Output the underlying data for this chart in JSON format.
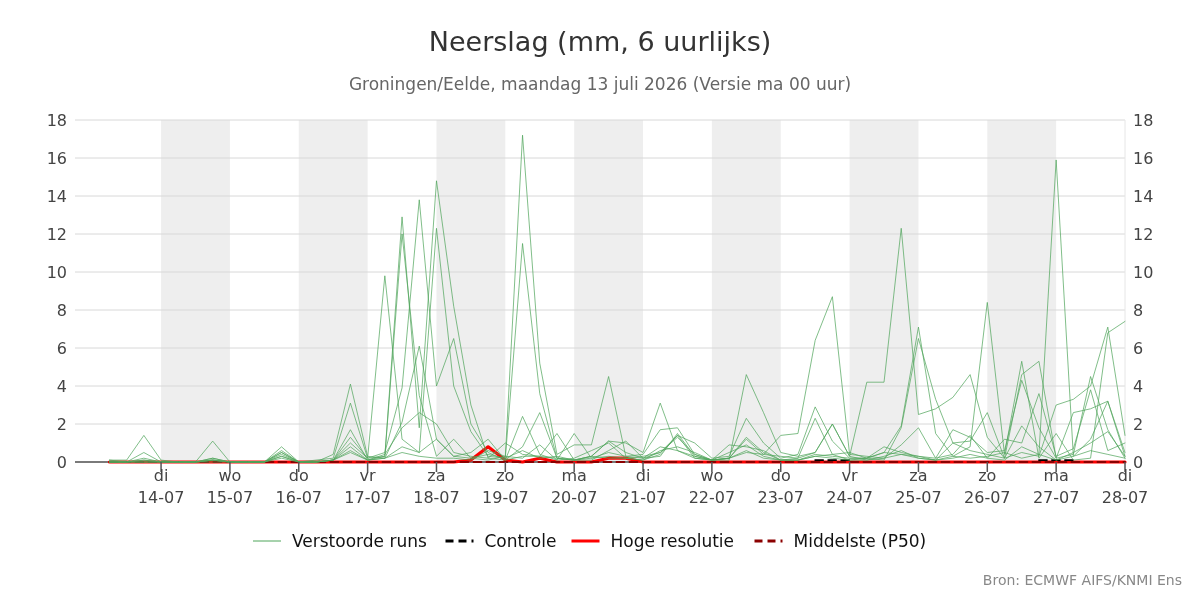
{
  "chart_data": {
    "type": "line",
    "title": "Neerslag (mm, 6 uurlijks)",
    "subtitle": "Groningen/Eelde, maandag 13 juli 2026 (Versie ma 00 uur)",
    "annotations": [
      "Bron: ECMWF AIFS/KNMI Ens"
    ],
    "x": [
      "2026-07-13T06:00",
      "2026-07-13T12:00",
      "2026-07-13T18:00",
      "2026-07-14T00:00",
      "2026-07-14T06:00",
      "2026-07-14T12:00",
      "2026-07-14T18:00",
      "2026-07-15T00:00",
      "2026-07-15T06:00",
      "2026-07-15T12:00",
      "2026-07-15T18:00",
      "2026-07-16T00:00",
      "2026-07-16T06:00",
      "2026-07-16T12:00",
      "2026-07-16T18:00",
      "2026-07-17T00:00",
      "2026-07-17T06:00",
      "2026-07-17T12:00",
      "2026-07-17T18:00",
      "2026-07-18T00:00",
      "2026-07-18T06:00",
      "2026-07-18T12:00",
      "2026-07-18T18:00",
      "2026-07-19T00:00",
      "2026-07-19T06:00",
      "2026-07-19T12:00",
      "2026-07-19T18:00",
      "2026-07-20T00:00",
      "2026-07-20T06:00",
      "2026-07-20T12:00",
      "2026-07-20T18:00",
      "2026-07-21T00:00",
      "2026-07-21T06:00",
      "2026-07-21T12:00",
      "2026-07-21T18:00",
      "2026-07-22T00:00",
      "2026-07-22T06:00",
      "2026-07-22T12:00",
      "2026-07-22T18:00",
      "2026-07-23T00:00",
      "2026-07-23T06:00",
      "2026-07-23T12:00",
      "2026-07-23T18:00",
      "2026-07-24T00:00",
      "2026-07-24T06:00",
      "2026-07-24T12:00",
      "2026-07-24T18:00",
      "2026-07-25T00:00",
      "2026-07-25T06:00",
      "2026-07-25T12:00",
      "2026-07-25T18:00",
      "2026-07-26T00:00",
      "2026-07-26T06:00",
      "2026-07-26T12:00",
      "2026-07-26T18:00",
      "2026-07-27T00:00",
      "2026-07-27T06:00",
      "2026-07-27T12:00",
      "2026-07-27T18:00",
      "2026-07-28T00:00"
    ],
    "series": [
      {
        "name": "Verstoorde runs",
        "color": "#4fa55a",
        "values": [
          0.1,
          0.1,
          1.4,
          0.1,
          0,
          0,
          0.1,
          0,
          0,
          0,
          0.3,
          0,
          0,
          0.4,
          4.1,
          0.3,
          0.2,
          0.5,
          0.3,
          0.2,
          0.2,
          0.1,
          0.6,
          0.3,
          17.2,
          5.2,
          0.4,
          0.9,
          0.9,
          4.5,
          0.3,
          0.4,
          1.7,
          1.8,
          0.4,
          0.1,
          0.2,
          0.5,
          0.4,
          1.4,
          1.5,
          6.4,
          8.7,
          0.4,
          0.3,
          0.2,
          0.4,
          0.2,
          0.1,
          0.3,
          0.2,
          0.3,
          0.5,
          0.2,
          0.4,
          15.9,
          0.3,
          0.6,
          0.4,
          0.2
        ]
      },
      {
        "color": "#4fa55a",
        "values": [
          0.1,
          0,
          0.5,
          0,
          0,
          0,
          1.1,
          0,
          0,
          0,
          0.8,
          0,
          0.1,
          0.2,
          3.1,
          0.2,
          9.8,
          1.2,
          0.5,
          12.3,
          4.0,
          1.6,
          0.3,
          0.2,
          11.5,
          3.6,
          0.2,
          0.1,
          0.3,
          1.1,
          1.0,
          0.5,
          3.1,
          0.6,
          0.2,
          0.1,
          0.1,
          4.6,
          2.6,
          0.5,
          0.3,
          0.5,
          2.0,
          0.3,
          4.2,
          4.2,
          12.3,
          2.5,
          2.8,
          3.4,
          4.6,
          1.3,
          0.2,
          0.5,
          0.3,
          3.0,
          3.3,
          4.0,
          7.1,
          1.4
        ]
      },
      {
        "color": "#4fa55a",
        "values": [
          0,
          0,
          0.1,
          0,
          0,
          0,
          0.2,
          0,
          0,
          0,
          0.5,
          0,
          0,
          0.1,
          1.7,
          0.1,
          0.3,
          12.9,
          1.8,
          14.8,
          8.2,
          3.0,
          0.2,
          0.1,
          2.4,
          0.4,
          0.1,
          1.5,
          0.2,
          0.3,
          0.2,
          0.3,
          0.5,
          1.4,
          1.0,
          0.2,
          0.3,
          2.3,
          1.0,
          0.2,
          0.4,
          2.9,
          1.1,
          0.2,
          0.2,
          0.5,
          1.9,
          7.1,
          1.5,
          0.3,
          0.8,
          8.4,
          0.4,
          5.3,
          0.2,
          1.5,
          0.1,
          0.2,
          6.8,
          7.4
        ]
      },
      {
        "color": "#4fa55a",
        "values": [
          0,
          0,
          0,
          0,
          0,
          0,
          0.1,
          0,
          0,
          0,
          0.4,
          0,
          0,
          0.1,
          1.3,
          0.2,
          0.5,
          3.9,
          13.8,
          4.0,
          6.5,
          2.0,
          0.5,
          0.1,
          0.8,
          2.6,
          0.2,
          0.1,
          0.3,
          1.1,
          0.5,
          0.2,
          0.5,
          1.3,
          0.4,
          0.1,
          0.2,
          1.2,
          0.4,
          0.3,
          0.2,
          2.3,
          0.4,
          0.5,
          0.2,
          0.1,
          1.8,
          6.5,
          3.3,
          1.0,
          1.1,
          2.6,
          0.2,
          4.6,
          5.3,
          0.2,
          2.6,
          2.8,
          3.2,
          0.3
        ]
      },
      {
        "color": "#4fa55a",
        "values": [
          0,
          0,
          0,
          0,
          0,
          0,
          0,
          0,
          0,
          0,
          0.2,
          0,
          0,
          0.1,
          0.8,
          0.1,
          0.2,
          2.1,
          6.1,
          1.2,
          0.3,
          0.5,
          1.2,
          0.1,
          0.3,
          0.3,
          1.5,
          0.1,
          0.1,
          0.6,
          1.1,
          0.2,
          0.3,
          1.5,
          0.3,
          0.1,
          0.2,
          1.3,
          0.5,
          0.1,
          0.2,
          0.5,
          2.0,
          0.3,
          0.1,
          0.2,
          0.9,
          1.8,
          0.2,
          1.7,
          1.3,
          0.5,
          0.6,
          4.3,
          1.8,
          0.2,
          0.4,
          4.5,
          1.7,
          0.2
        ]
      },
      {
        "color": "#4fa55a",
        "values": [
          0,
          0,
          0.1,
          0,
          0,
          0,
          0.1,
          0,
          0,
          0,
          0.6,
          0,
          0,
          0.1,
          1.0,
          0.2,
          0.3,
          12.0,
          3.5,
          0.3,
          1.2,
          0.2,
          0.1,
          0.3,
          0.2,
          0.9,
          0.1,
          0.2,
          0.6,
          1.0,
          0.2,
          0.1,
          0.6,
          0.8,
          0.5,
          0.1,
          0.9,
          0.8,
          0.6,
          0.1,
          0.1,
          0.3,
          0.4,
          0.1,
          0.2,
          0.8,
          0.5,
          0.3,
          0.2,
          0.4,
          1.4,
          0.2,
          1.2,
          1.0,
          3.6,
          0.3,
          0.7,
          3.8,
          0.6,
          1.0
        ]
      },
      {
        "color": "#4fa55a",
        "values": [
          0,
          0,
          0.2,
          0,
          0,
          0,
          0.2,
          0,
          0,
          0,
          0.5,
          0,
          0,
          0.1,
          0.6,
          0.1,
          0.4,
          1.8,
          2.6,
          2.0,
          0.5,
          0.3,
          0.2,
          1.0,
          0.4,
          0.3,
          0.2,
          0.1,
          0.2,
          0.5,
          0.3,
          0.2,
          0.8,
          0.6,
          0.3,
          0.1,
          0.5,
          0.9,
          0.3,
          0.1,
          0.1,
          0.4,
          0.3,
          0.2,
          0.2,
          0.5,
          0.4,
          0.3,
          0.1,
          1.0,
          0.6,
          0.4,
          0.2,
          1.9,
          0.8,
          0.1,
          0.3,
          1.2,
          3.2,
          0.5
        ]
      },
      {
        "color": "#4fa55a",
        "values": [
          0,
          0,
          0,
          0,
          0,
          0,
          0.1,
          0,
          0,
          0,
          0.3,
          0,
          0,
          0.1,
          0.5,
          0.1,
          0.2,
          0.8,
          0.5,
          1.2,
          0.3,
          0.2,
          0.4,
          0.2,
          0.6,
          0.2,
          0.3,
          0.1,
          0.3,
          0.2,
          0.2,
          0.1,
          0.4,
          1.4,
          0.2,
          0.1,
          0.2,
          0.6,
          0.2,
          0.1,
          0.1,
          0.3,
          0.2,
          0.1,
          0.1,
          0.3,
          0.6,
          0.2,
          0.1,
          0.2,
          0.4,
          0.2,
          0.1,
          0.8,
          0.4,
          0.1,
          0.5,
          1.0,
          1.6,
          0.3
        ]
      },
      {
        "name": "Controle",
        "color": "#000000",
        "line_style": "dashed",
        "values": [
          null,
          null,
          null,
          null,
          null,
          null,
          null,
          null,
          null,
          null,
          null,
          null,
          null,
          null,
          null,
          null,
          null,
          null,
          null,
          null,
          null,
          null,
          null,
          null,
          null,
          null,
          null,
          null,
          null,
          null,
          null,
          null,
          null,
          null,
          null,
          null,
          null,
          null,
          null,
          null,
          null,
          0.1,
          0.1,
          0.1,
          null,
          null,
          null,
          null,
          null,
          null,
          null,
          null,
          null,
          null,
          0.1,
          0.1,
          0.1,
          null,
          null,
          null
        ]
      },
      {
        "name": "Hoge resolutie",
        "color": "#ff0000",
        "values": [
          0,
          0,
          0,
          0,
          0,
          0,
          0,
          0,
          0,
          0,
          0,
          0,
          0,
          0,
          0,
          0,
          0,
          0,
          0,
          0,
          0,
          0.1,
          0.8,
          0.1,
          0,
          0.2,
          0,
          0,
          0,
          0.2,
          0.2,
          0,
          0,
          0,
          0,
          0,
          0,
          0,
          0,
          0,
          0,
          0,
          0,
          0,
          0,
          0,
          0,
          0,
          0,
          0,
          0,
          0,
          0,
          0,
          0,
          0,
          0,
          0,
          0,
          0
        ]
      },
      {
        "name": "Middelste (P50)",
        "color": "#8b0000",
        "line_style": "dashed",
        "values": [
          0,
          0,
          0,
          0,
          0,
          0,
          0,
          0,
          0,
          0,
          0,
          0,
          0,
          0,
          0,
          0,
          0,
          0,
          0,
          0,
          0,
          0,
          0,
          0,
          0,
          0,
          0,
          0,
          0,
          0,
          0,
          0,
          0,
          0,
          0,
          0,
          0,
          0,
          0,
          0,
          0,
          0,
          0,
          0,
          0,
          0,
          0,
          0,
          0,
          0,
          0,
          0,
          0,
          0,
          0,
          0,
          0,
          0,
          0,
          0
        ]
      }
    ],
    "xlim": [
      "2026-07-12T18:00",
      "2026-07-28T00:00"
    ],
    "xticks": [
      {
        "value": "2026-07-14",
        "label": "di\n14-07"
      },
      {
        "value": "2026-07-15",
        "label": "wo\n15-07"
      },
      {
        "value": "2026-07-16",
        "label": "do\n16-07"
      },
      {
        "value": "2026-07-17",
        "label": "vr\n17-07"
      },
      {
        "value": "2026-07-18",
        "label": "za\n18-07"
      },
      {
        "value": "2026-07-19",
        "label": "zo\n19-07"
      },
      {
        "value": "2026-07-20",
        "label": "ma\n20-07"
      },
      {
        "value": "2026-07-21",
        "label": "di\n21-07"
      },
      {
        "value": "2026-07-22",
        "label": "wo\n22-07"
      },
      {
        "value": "2026-07-23",
        "label": "do\n23-07"
      },
      {
        "value": "2026-07-24",
        "label": "vr\n24-07"
      },
      {
        "value": "2026-07-25",
        "label": "za\n25-07"
      },
      {
        "value": "2026-07-26",
        "label": "zo\n26-07"
      },
      {
        "value": "2026-07-27",
        "label": "ma\n27-07"
      },
      {
        "value": "2026-07-28",
        "label": "di\n28-07"
      }
    ],
    "ylim": [
      0,
      18
    ],
    "yticks": [
      0,
      2,
      4,
      6,
      8,
      10,
      12,
      14,
      16,
      18
    ],
    "y2lim": [
      0,
      18
    ],
    "y2ticks": [
      0,
      2,
      4,
      6,
      8,
      10,
      12,
      14,
      16,
      18
    ],
    "bands": [
      {
        "axis": "x",
        "from": "2026-07-14",
        "to": "2026-07-15",
        "color": "#eeeeee"
      },
      {
        "axis": "x",
        "from": "2026-07-16",
        "to": "2026-07-17",
        "color": "#eeeeee"
      },
      {
        "axis": "x",
        "from": "2026-07-18",
        "to": "2026-07-19",
        "color": "#eeeeee"
      },
      {
        "axis": "x",
        "from": "2026-07-20",
        "to": "2026-07-21",
        "color": "#eeeeee"
      },
      {
        "axis": "x",
        "from": "2026-07-22",
        "to": "2026-07-23",
        "color": "#eeeeee"
      },
      {
        "axis": "x",
        "from": "2026-07-24",
        "to": "2026-07-25",
        "color": "#eeeeee"
      },
      {
        "axis": "x",
        "from": "2026-07-26",
        "to": "2026-07-27",
        "color": "#eeeeee"
      }
    ],
    "grid": "y",
    "legend": "bottom",
    "marker": "none"
  }
}
